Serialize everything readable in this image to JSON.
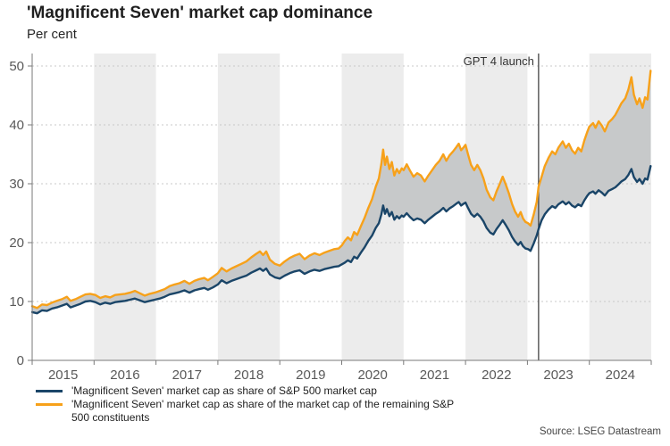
{
  "header": {
    "title": "'Magnificent Seven' market cap dominance",
    "subtitle": "Per cent"
  },
  "source": "Source: LSEG Datastream",
  "legend": [
    {
      "label": "'Magnificent Seven' market cap as share of S&P 500 market cap",
      "color": "#1a4568"
    },
    {
      "label": "'Magnificent Seven' market cap as share of the market cap of the remaining S&P 500 constituents",
      "color": "#f7a11a"
    }
  ],
  "chart_data": {
    "type": "line",
    "title": "'Magnificent Seven' market cap dominance",
    "ylabel": "Per cent",
    "xlabel": "",
    "ylim": [
      0,
      50
    ],
    "yticks": [
      0,
      10,
      20,
      30,
      40,
      50
    ],
    "x_years": [
      2015,
      2016,
      2017,
      2018,
      2019,
      2020,
      2021,
      2022,
      2023,
      2024
    ],
    "shaded_years": [
      2016,
      2018,
      2020,
      2022,
      2024
    ],
    "grid": "horizontal-dotted",
    "legend_position": "bottom-left",
    "annotation": {
      "label": "GPT 4 launch",
      "x": 2023.18
    },
    "fill_between_color": "#c7c9ca",
    "band_color": "#ececec",
    "x": [
      2015.0,
      2015.08,
      2015.16,
      2015.24,
      2015.32,
      2015.4,
      2015.48,
      2015.56,
      2015.62,
      2015.7,
      2015.78,
      2015.86,
      2015.94,
      2016.02,
      2016.1,
      2016.18,
      2016.26,
      2016.34,
      2016.42,
      2016.5,
      2016.58,
      2016.66,
      2016.74,
      2016.82,
      2016.9,
      2016.98,
      2017.06,
      2017.14,
      2017.22,
      2017.3,
      2017.38,
      2017.46,
      2017.54,
      2017.62,
      2017.7,
      2017.78,
      2017.84,
      2017.92,
      2018.0,
      2018.06,
      2018.14,
      2018.22,
      2018.3,
      2018.38,
      2018.46,
      2018.54,
      2018.62,
      2018.68,
      2018.73,
      2018.78,
      2018.84,
      2018.92,
      2019.0,
      2019.08,
      2019.16,
      2019.24,
      2019.32,
      2019.4,
      2019.48,
      2019.56,
      2019.64,
      2019.72,
      2019.8,
      2019.88,
      2019.95,
      2020.0,
      2020.05,
      2020.1,
      2020.15,
      2020.2,
      2020.25,
      2020.31,
      2020.37,
      2020.43,
      2020.49,
      2020.55,
      2020.6,
      2020.64,
      2020.67,
      2020.7,
      2020.73,
      2020.77,
      2020.81,
      2020.85,
      2020.89,
      2020.93,
      2020.97,
      2021.0,
      2021.05,
      2021.1,
      2021.16,
      2021.22,
      2021.28,
      2021.34,
      2021.4,
      2021.46,
      2021.52,
      2021.58,
      2021.64,
      2021.69,
      2021.74,
      2021.8,
      2021.85,
      2021.89,
      2021.93,
      2021.97,
      2022.0,
      2022.04,
      2022.09,
      2022.14,
      2022.19,
      2022.24,
      2022.29,
      2022.34,
      2022.4,
      2022.45,
      2022.5,
      2022.55,
      2022.6,
      2022.65,
      2022.7,
      2022.75,
      2022.8,
      2022.85,
      2022.89,
      2022.93,
      2022.97,
      2023.01,
      2023.05,
      2023.1,
      2023.15,
      2023.18,
      2023.23,
      2023.28,
      2023.34,
      2023.4,
      2023.45,
      2023.5,
      2023.57,
      2023.62,
      2023.67,
      2023.72,
      2023.77,
      2023.82,
      2023.87,
      2023.92,
      2023.97,
      2024.0,
      2024.06,
      2024.1,
      2024.15,
      2024.2,
      2024.25,
      2024.31,
      2024.37,
      2024.42,
      2024.47,
      2024.52,
      2024.58,
      2024.63,
      2024.68,
      2024.72,
      2024.77,
      2024.81,
      2024.86,
      2024.9,
      2024.94,
      2024.99
    ],
    "series": [
      {
        "name": "'Magnificent Seven' market cap as share of S&P 500 market cap",
        "color": "#1a4568",
        "values": [
          8.2,
          8.0,
          8.5,
          8.4,
          8.8,
          9.0,
          9.3,
          9.6,
          9.0,
          9.3,
          9.6,
          10.0,
          10.1,
          9.9,
          9.5,
          9.8,
          9.6,
          9.9,
          10.0,
          10.1,
          10.3,
          10.5,
          10.2,
          9.9,
          10.1,
          10.3,
          10.5,
          10.8,
          11.2,
          11.4,
          11.6,
          11.9,
          11.5,
          11.9,
          12.1,
          12.3,
          12.0,
          12.4,
          12.9,
          13.6,
          13.1,
          13.5,
          13.8,
          14.1,
          14.4,
          14.9,
          15.3,
          15.6,
          15.2,
          15.6,
          14.6,
          14.1,
          13.9,
          14.4,
          14.8,
          15.1,
          15.3,
          14.7,
          15.1,
          15.4,
          15.2,
          15.5,
          15.7,
          15.9,
          16.0,
          16.3,
          16.6,
          17.0,
          16.7,
          17.6,
          17.3,
          18.3,
          19.2,
          20.3,
          21.2,
          22.5,
          23.3,
          24.8,
          26.3,
          24.9,
          25.7,
          24.5,
          25.2,
          23.9,
          24.5,
          24.1,
          24.6,
          24.4,
          25.0,
          24.4,
          23.8,
          24.1,
          23.9,
          23.3,
          23.9,
          24.4,
          24.9,
          25.3,
          25.9,
          25.3,
          25.8,
          26.2,
          26.6,
          26.9,
          26.3,
          26.6,
          26.8,
          25.9,
          24.9,
          24.4,
          24.9,
          24.4,
          23.6,
          22.5,
          21.7,
          21.4,
          22.3,
          23.0,
          23.8,
          23.0,
          22.1,
          21.0,
          20.2,
          19.6,
          20.1,
          19.4,
          19.0,
          18.9,
          18.6,
          19.8,
          21.2,
          22.3,
          23.8,
          24.8,
          25.6,
          26.2,
          25.9,
          26.5,
          27.0,
          26.5,
          26.9,
          26.3,
          26.0,
          26.5,
          26.2,
          27.2,
          28.0,
          28.4,
          28.7,
          28.3,
          28.9,
          28.5,
          28.0,
          28.8,
          29.1,
          29.4,
          29.9,
          30.4,
          30.8,
          31.5,
          32.5,
          31.1,
          30.3,
          30.8,
          30.0,
          30.9,
          30.7,
          33.0
        ]
      },
      {
        "name": "'Magnificent Seven' market cap as share of the market cap of the remaining S&P 500 constituents",
        "color": "#f7a11a",
        "values": [
          9.2,
          8.9,
          9.5,
          9.4,
          9.8,
          10.1,
          10.4,
          10.8,
          10.1,
          10.4,
          10.8,
          11.2,
          11.3,
          11.1,
          10.6,
          10.9,
          10.7,
          11.1,
          11.2,
          11.3,
          11.5,
          11.8,
          11.4,
          11.0,
          11.3,
          11.5,
          11.8,
          12.1,
          12.6,
          12.9,
          13.1,
          13.5,
          13.0,
          13.5,
          13.8,
          14.0,
          13.6,
          14.2,
          14.8,
          15.7,
          15.1,
          15.6,
          16.0,
          16.4,
          16.8,
          17.5,
          18.1,
          18.5,
          17.9,
          18.5,
          17.1,
          16.4,
          16.1,
          16.8,
          17.4,
          17.8,
          18.1,
          17.2,
          17.8,
          18.2,
          17.9,
          18.3,
          18.6,
          18.9,
          19.0,
          19.5,
          20.3,
          20.9,
          20.4,
          21.8,
          21.3,
          22.8,
          24.2,
          25.9,
          27.4,
          29.5,
          30.9,
          33.4,
          35.8,
          33.2,
          34.6,
          32.5,
          33.7,
          31.4,
          32.5,
          31.8,
          32.6,
          32.3,
          33.3,
          32.3,
          31.2,
          31.8,
          31.4,
          30.4,
          31.4,
          32.3,
          33.2,
          33.9,
          35.0,
          33.9,
          34.8,
          35.5,
          36.2,
          36.8,
          35.7,
          36.2,
          36.6,
          35.0,
          33.2,
          32.3,
          33.2,
          32.3,
          30.9,
          29.0,
          27.7,
          27.2,
          28.7,
          29.9,
          31.2,
          29.9,
          28.4,
          26.6,
          25.3,
          24.4,
          25.2,
          24.1,
          23.5,
          23.3,
          22.9,
          24.7,
          26.9,
          29.5,
          31.2,
          33.0,
          34.4,
          35.5,
          35.0,
          36.1,
          37.2,
          36.1,
          36.8,
          35.7,
          35.1,
          36.1,
          35.5,
          37.4,
          38.9,
          39.7,
          40.3,
          39.5,
          40.6,
          39.9,
          38.9,
          40.4,
          41.0,
          41.7,
          42.7,
          43.7,
          44.5,
          46.0,
          48.1,
          45.1,
          43.5,
          44.5,
          42.9,
          44.7,
          44.3,
          49.2
        ]
      }
    ]
  }
}
